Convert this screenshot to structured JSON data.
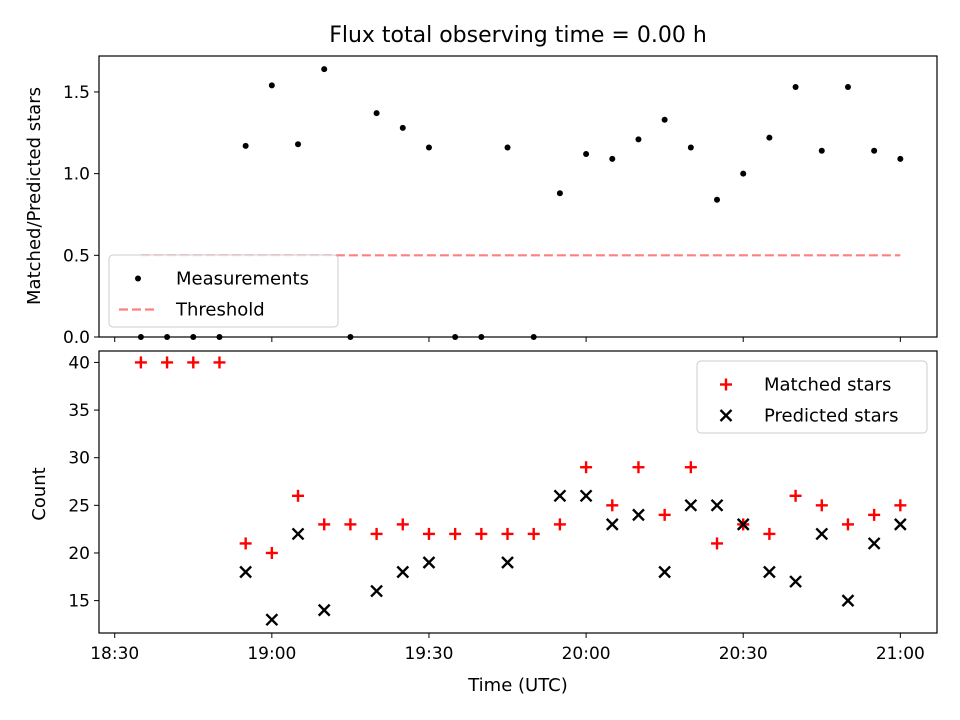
{
  "title": "Flux total observing time = 0.00 h",
  "chart_data": [
    {
      "type": "scatter",
      "ylabel": "Matched/Predicted stars",
      "xlabel": "",
      "ylim": [
        0.0,
        1.72
      ],
      "xlim": [
        "18:27",
        "21:07"
      ],
      "y_ticks": [
        "0.0",
        "0.5",
        "1.0",
        "1.5"
      ],
      "grid": false,
      "legend_position": "lower-left",
      "series": [
        {
          "name": "Measurements",
          "marker": "dot",
          "color": "#000000",
          "x": [
            "18:35",
            "18:40",
            "18:45",
            "18:50",
            "18:55",
            "19:00",
            "19:05",
            "19:10",
            "19:15",
            "19:20",
            "19:25",
            "19:30",
            "19:35",
            "19:40",
            "19:45",
            "19:50",
            "19:55",
            "20:00",
            "20:05",
            "20:10",
            "20:15",
            "20:20",
            "20:25",
            "20:30",
            "20:35",
            "20:40",
            "20:45",
            "20:50",
            "20:55",
            "21:00"
          ],
          "y": [
            0.0,
            0.0,
            0.0,
            0.0,
            1.17,
            1.54,
            1.18,
            1.64,
            0.0,
            1.37,
            1.28,
            1.16,
            0.0,
            0.0,
            1.16,
            0.0,
            0.88,
            1.12,
            1.09,
            1.21,
            1.33,
            1.16,
            0.84,
            1.0,
            1.22,
            1.53,
            1.14,
            1.53,
            1.14,
            1.09
          ]
        },
        {
          "name": "Threshold",
          "line_style": "dashed",
          "color": "#ff7f7f",
          "x": [
            "18:35",
            "21:00"
          ],
          "y": [
            0.5,
            0.5
          ]
        }
      ]
    },
    {
      "type": "scatter",
      "ylabel": "Count",
      "xlabel": "Time (UTC)",
      "ylim": [
        11.6,
        41.2
      ],
      "xlim": [
        "18:27",
        "21:07"
      ],
      "y_ticks": [
        "15",
        "20",
        "25",
        "30",
        "35",
        "40"
      ],
      "x_ticks": [
        "18:30",
        "19:00",
        "19:30",
        "20:00",
        "20:30",
        "21:00"
      ],
      "grid": false,
      "legend_position": "upper-right",
      "series": [
        {
          "name": "Matched stars",
          "marker": "plus",
          "color": "#ff0000",
          "x": [
            "18:35",
            "18:40",
            "18:45",
            "18:50",
            "18:55",
            "19:00",
            "19:05",
            "19:10",
            "19:15",
            "19:20",
            "19:25",
            "19:30",
            "19:35",
            "19:40",
            "19:45",
            "19:50",
            "19:55",
            "20:00",
            "20:05",
            "20:10",
            "20:15",
            "20:20",
            "20:25",
            "20:30",
            "20:35",
            "20:40",
            "20:45",
            "20:50",
            "20:55",
            "21:00"
          ],
          "y": [
            40,
            40,
            40,
            40,
            21,
            20,
            26,
            23,
            23,
            22,
            23,
            22,
            22,
            22,
            22,
            22,
            23,
            29,
            25,
            29,
            24,
            29,
            21,
            23,
            22,
            26,
            25,
            23,
            24,
            25
          ]
        },
        {
          "name": "Predicted stars",
          "marker": "x",
          "color": "#000000",
          "x": [
            "18:55",
            "19:00",
            "19:05",
            "19:10",
            "19:20",
            "19:25",
            "19:30",
            "19:45",
            "19:55",
            "20:00",
            "20:05",
            "20:10",
            "20:15",
            "20:20",
            "20:25",
            "20:30",
            "20:35",
            "20:40",
            "20:45",
            "20:50",
            "20:55",
            "21:00"
          ],
          "y": [
            18,
            13,
            22,
            14,
            16,
            18,
            19,
            19,
            26,
            26,
            23,
            24,
            18,
            25,
            25,
            23,
            18,
            17,
            22,
            15,
            21,
            23
          ]
        }
      ]
    }
  ]
}
